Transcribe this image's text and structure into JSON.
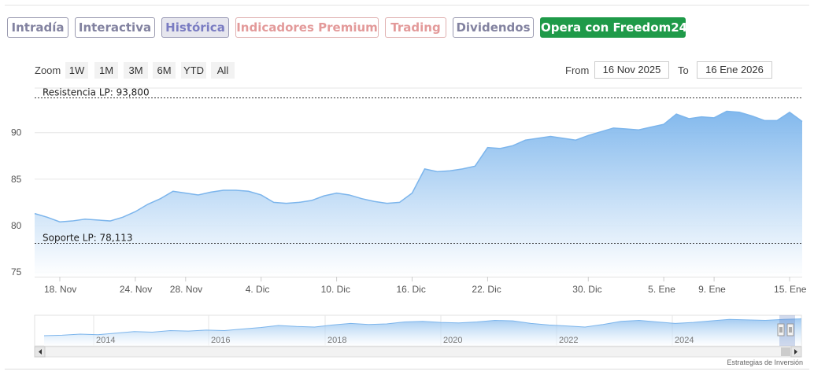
{
  "tabs": [
    {
      "label": "Intradía",
      "style": "normal"
    },
    {
      "label": "Interactiva",
      "style": "normal"
    },
    {
      "label": "Histórica",
      "style": "active"
    },
    {
      "label": "Indicadores Premium",
      "style": "warm"
    },
    {
      "label": "Trading",
      "style": "warm"
    },
    {
      "label": "Dividendos",
      "style": "normal"
    },
    {
      "label": "Opera con Freedom24",
      "style": "cta"
    }
  ],
  "zoom": {
    "label": "Zoom",
    "buttons": [
      "1W",
      "1M",
      "3M",
      "6M",
      "YTD",
      "All"
    ]
  },
  "range": {
    "from_label": "From",
    "from_value": "16 Nov 2025",
    "to_label": "To",
    "to_value": "16 Ene 2026"
  },
  "credit": "Estrategias de Inversión",
  "colors": {
    "line": "#7cb5ec",
    "fill_top": "#7cb5ec",
    "fill_bottom": "#ffffff",
    "cta": "#1f9a49"
  },
  "chart_data": {
    "type": "area",
    "ylim": [
      74.5,
      94.8
    ],
    "yticks": [
      75,
      80,
      85,
      90
    ],
    "xticks": [
      "18. Nov",
      "24. Nov",
      "28. Nov",
      "4. Dic",
      "10. Dic",
      "16. Dic",
      "22. Dic",
      "30. Dic",
      "5. Ene",
      "9. Ene",
      "15. Ene"
    ],
    "x": [
      "2025-11-16",
      "2025-11-17",
      "2025-11-18",
      "2025-11-19",
      "2025-11-20",
      "2025-11-21",
      "2025-11-22",
      "2025-11-23",
      "2025-11-24",
      "2025-11-25",
      "2025-11-26",
      "2025-11-27",
      "2025-11-28",
      "2025-11-29",
      "2025-11-30",
      "2025-12-01",
      "2025-12-02",
      "2025-12-03",
      "2025-12-04",
      "2025-12-05",
      "2025-12-06",
      "2025-12-07",
      "2025-12-08",
      "2025-12-09",
      "2025-12-10",
      "2025-12-11",
      "2025-12-12",
      "2025-12-13",
      "2025-12-14",
      "2025-12-15",
      "2025-12-16",
      "2025-12-17",
      "2025-12-18",
      "2025-12-19",
      "2025-12-20",
      "2025-12-21",
      "2025-12-22",
      "2025-12-23",
      "2025-12-24",
      "2025-12-25",
      "2025-12-26",
      "2025-12-27",
      "2025-12-28",
      "2025-12-29",
      "2025-12-30",
      "2025-12-31",
      "2026-01-01",
      "2026-01-02",
      "2026-01-03",
      "2026-01-04",
      "2026-01-05",
      "2026-01-06",
      "2026-01-07",
      "2026-01-08",
      "2026-01-09",
      "2026-01-10",
      "2026-01-11",
      "2026-01-12",
      "2026-01-13",
      "2026-01-14",
      "2026-01-15",
      "2026-01-16"
    ],
    "series": [
      {
        "values": [
          81.3,
          80.9,
          80.4,
          80.5,
          80.7,
          80.6,
          80.5,
          80.9,
          81.5,
          82.3,
          82.9,
          83.7,
          83.5,
          83.3,
          83.6,
          83.8,
          83.8,
          83.7,
          83.3,
          82.5,
          82.4,
          82.5,
          82.7,
          83.2,
          83.5,
          83.3,
          82.9,
          82.6,
          82.4,
          82.5,
          83.5,
          86.1,
          85.8,
          85.9,
          86.1,
          86.4,
          88.4,
          88.3,
          88.6,
          89.2,
          89.4,
          89.6,
          89.4,
          89.2,
          89.7,
          90.1,
          90.5,
          90.4,
          90.3,
          90.6,
          90.9,
          92.0,
          91.5,
          91.7,
          91.6,
          92.3,
          92.2,
          91.8,
          91.3,
          91.3,
          92.2,
          91.2
        ]
      }
    ],
    "annotations": [
      {
        "label": "Resistencia LP: 93,800",
        "value": 93.8
      },
      {
        "label": "Soporte LP: 78,113",
        "value": 78.113
      }
    ],
    "navigator": {
      "years": [
        "2014",
        "2016",
        "2018",
        "2020",
        "2022",
        "2024"
      ],
      "values": [
        20,
        21,
        23,
        22,
        25,
        28,
        27,
        30,
        29,
        31,
        30,
        33,
        36,
        40,
        38,
        37,
        41,
        44,
        42,
        43,
        47,
        48,
        46,
        45,
        47,
        50,
        49,
        44,
        41,
        39,
        37,
        42,
        48,
        50,
        47,
        44,
        46,
        49,
        52,
        51,
        50,
        52,
        53
      ]
    },
    "grid": true,
    "legend": "none"
  }
}
